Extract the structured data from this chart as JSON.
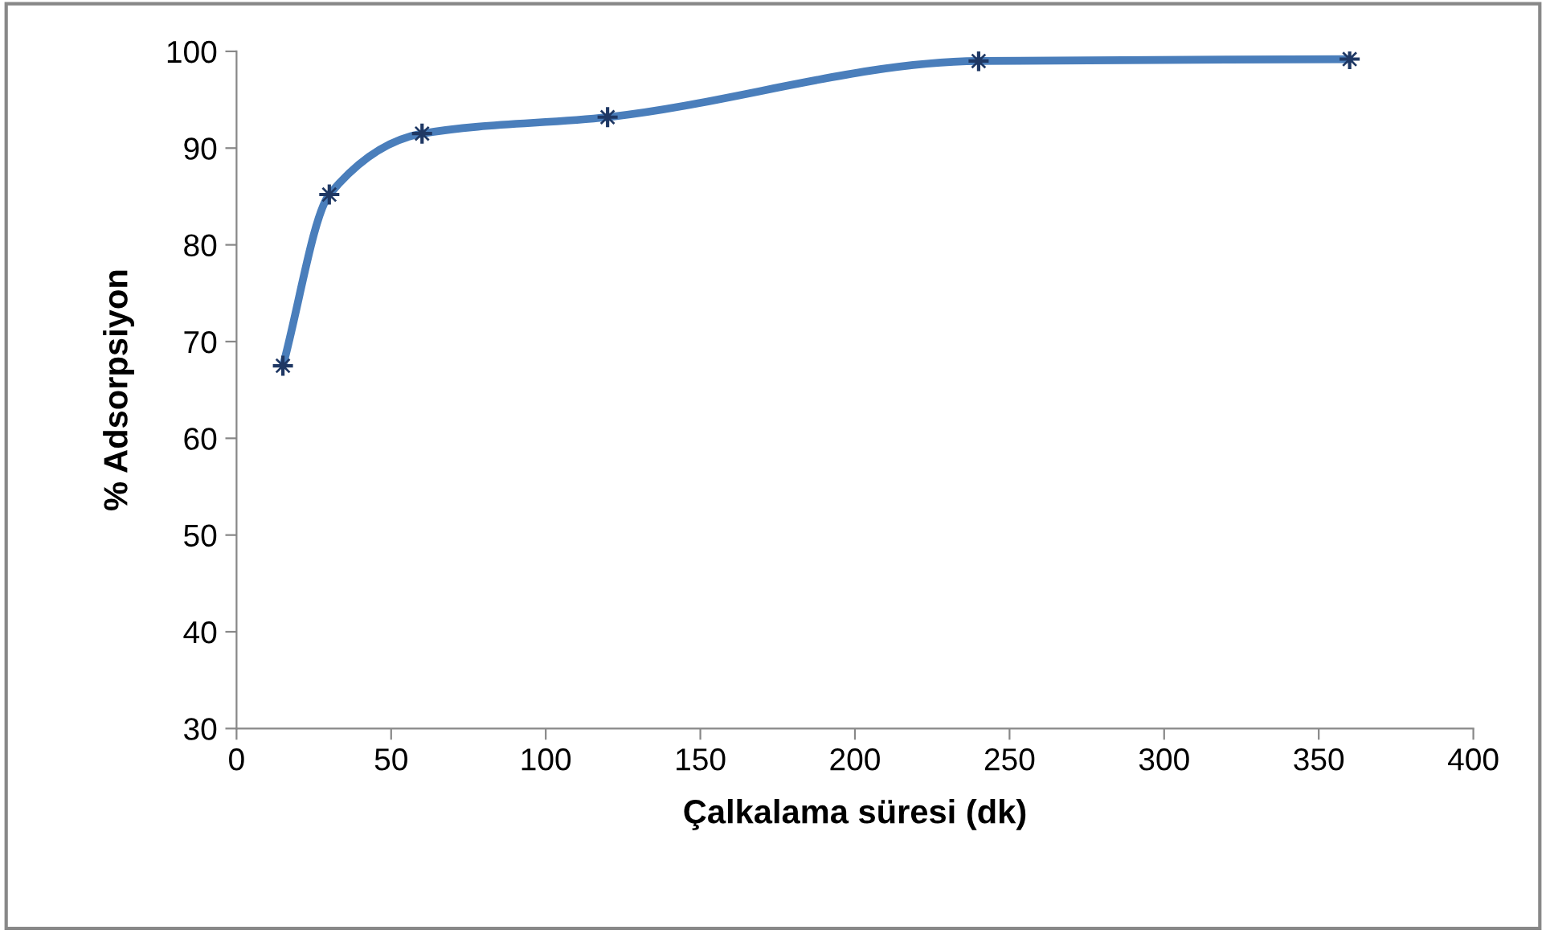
{
  "chart_data": {
    "type": "line",
    "xlabel": "Çalkalama süresi (dk)",
    "ylabel": "% Adsorpsiyon",
    "x": [
      15,
      30,
      60,
      120,
      240,
      360
    ],
    "series": [
      {
        "color": "#4a7ebb",
        "values": [
          67.5,
          85.2,
          91.5,
          93.2,
          99.0,
          99.2
        ]
      }
    ],
    "xlim": [
      0,
      400
    ],
    "xticks": [
      0,
      50,
      100,
      150,
      200,
      250,
      300,
      350,
      400
    ],
    "ylim": [
      30,
      100
    ],
    "yticks": [
      30,
      40,
      50,
      60,
      70,
      80,
      90,
      100
    ],
    "grid": false,
    "marker": "cross",
    "line_style": "solid"
  }
}
